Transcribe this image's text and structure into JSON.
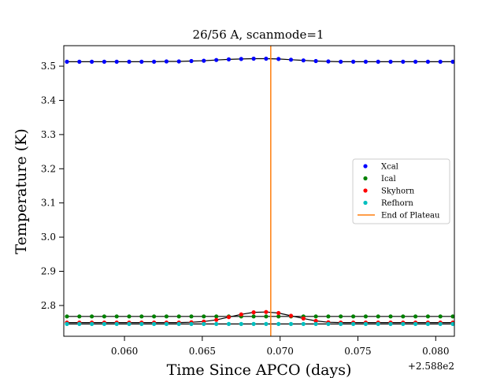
{
  "chart_data": {
    "type": "scatter",
    "title": "26/56 A, scanmode=1",
    "xlabel": "Time Since APCO (days)",
    "ylabel": "Temperature (K)",
    "x_offset_label": "+2.588e2",
    "xlim": [
      0.0561,
      0.0812
    ],
    "ylim": [
      2.71,
      3.56
    ],
    "xticks": [
      0.06,
      0.065,
      0.07,
      0.075,
      0.08
    ],
    "xtick_labels": [
      "0.060",
      "0.065",
      "0.070",
      "0.075",
      "0.080"
    ],
    "yticks": [
      2.8,
      2.9,
      3.0,
      3.1,
      3.2,
      3.3,
      3.4,
      3.5
    ],
    "ytick_labels": [
      "2.8",
      "2.9",
      "3.0",
      "3.1",
      "3.2",
      "3.3",
      "3.4",
      "3.5"
    ],
    "legend_position": "center-right",
    "x": [
      0.0563,
      0.0571,
      0.0579,
      0.0587,
      0.0595,
      0.0603,
      0.0611,
      0.0619,
      0.0627,
      0.0635,
      0.0643,
      0.0651,
      0.0659,
      0.0667,
      0.0675,
      0.0683,
      0.0691,
      0.0699,
      0.0707,
      0.0715,
      0.0723,
      0.0731,
      0.0739,
      0.0747,
      0.0755,
      0.0763,
      0.0771,
      0.0779,
      0.0787,
      0.0795,
      0.0803,
      0.0811
    ],
    "series": [
      {
        "name": "Xcal",
        "color": "#0000ff",
        "values": [
          3.513,
          3.513,
          3.513,
          3.513,
          3.513,
          3.513,
          3.513,
          3.513,
          3.514,
          3.514,
          3.515,
          3.516,
          3.518,
          3.52,
          3.521,
          3.522,
          3.522,
          3.521,
          3.519,
          3.517,
          3.515,
          3.514,
          3.513,
          3.513,
          3.513,
          3.513,
          3.513,
          3.513,
          3.513,
          3.513,
          3.513,
          3.513
        ]
      },
      {
        "name": "Ical",
        "color": "#008000",
        "values": [
          2.768,
          2.768,
          2.768,
          2.768,
          2.768,
          2.768,
          2.768,
          2.768,
          2.768,
          2.768,
          2.768,
          2.768,
          2.768,
          2.768,
          2.768,
          2.768,
          2.768,
          2.768,
          2.768,
          2.768,
          2.768,
          2.768,
          2.768,
          2.768,
          2.768,
          2.768,
          2.768,
          2.768,
          2.768,
          2.768,
          2.768,
          2.768
        ]
      },
      {
        "name": "Skyhorn",
        "color": "#ff0000",
        "values": [
          2.75,
          2.75,
          2.75,
          2.75,
          2.75,
          2.75,
          2.75,
          2.75,
          2.75,
          2.75,
          2.751,
          2.753,
          2.758,
          2.766,
          2.774,
          2.78,
          2.781,
          2.778,
          2.77,
          2.762,
          2.755,
          2.751,
          2.75,
          2.75,
          2.75,
          2.75,
          2.75,
          2.75,
          2.75,
          2.75,
          2.75,
          2.75
        ]
      },
      {
        "name": "Refhorn",
        "color": "#00bfbf",
        "values": [
          2.746,
          2.746,
          2.746,
          2.746,
          2.746,
          2.746,
          2.746,
          2.746,
          2.746,
          2.746,
          2.746,
          2.746,
          2.746,
          2.746,
          2.746,
          2.746,
          2.746,
          2.746,
          2.746,
          2.746,
          2.746,
          2.746,
          2.746,
          2.746,
          2.746,
          2.746,
          2.746,
          2.746,
          2.746,
          2.746,
          2.746,
          2.746
        ]
      }
    ],
    "vertical_line": {
      "name": "End of Plateau",
      "x": 0.0694,
      "color": "#ff7f0e"
    }
  }
}
